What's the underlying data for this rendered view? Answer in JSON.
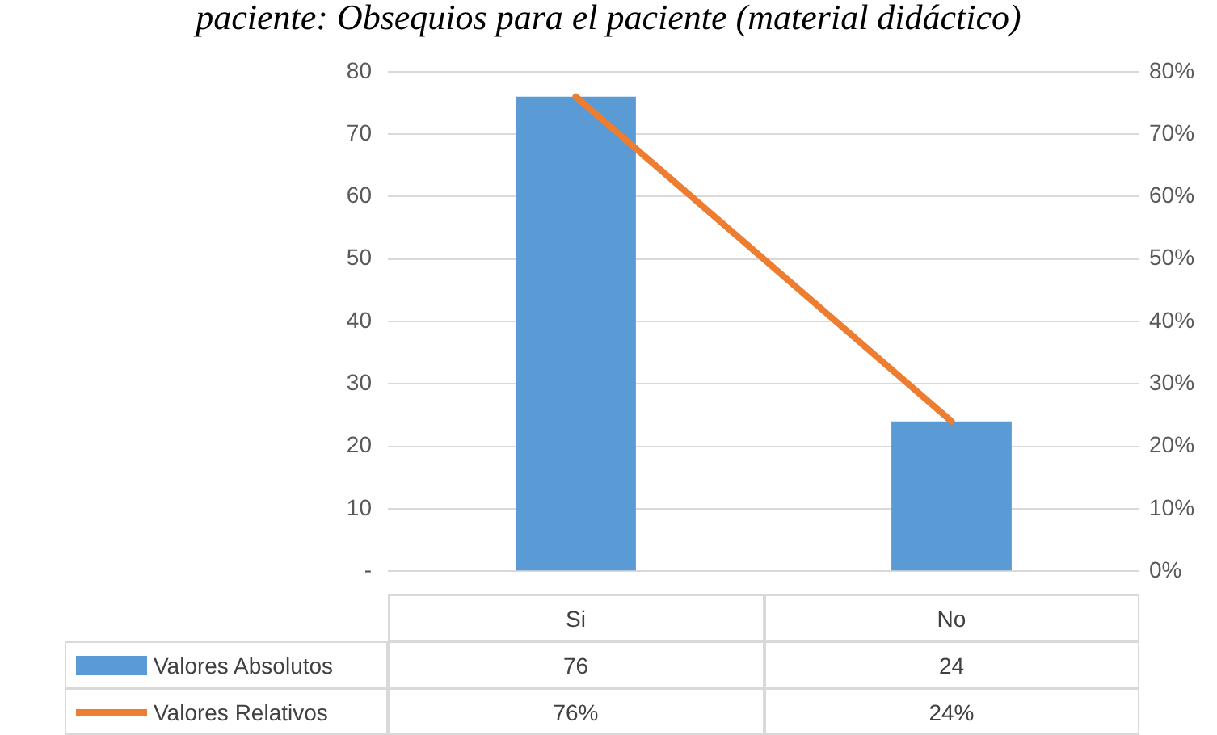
{
  "chart_data": {
    "type": "bar",
    "title": "paciente: Obsequios para el paciente (material didáctico)",
    "categories": [
      "Si",
      "No"
    ],
    "series": [
      {
        "name": "Valores Absolutos",
        "color": "#5b9bd5",
        "values": [
          76,
          24
        ],
        "value_labels": [
          "76",
          "24"
        ]
      },
      {
        "name": "Valores Relativos",
        "type": "line",
        "axis": "y2",
        "color": "#ed7d31",
        "values": [
          76,
          24
        ],
        "value_labels": [
          "76%",
          "24%"
        ],
        "marker": "none"
      }
    ],
    "ylim": [
      0,
      80
    ],
    "yticks": [
      {
        "value": 0,
        "label": "-"
      },
      10,
      20,
      30,
      40,
      50,
      60,
      70,
      80
    ],
    "y2lim": [
      0,
      80
    ],
    "y2ticks": [
      {
        "value": 0,
        "label": "0%"
      },
      {
        "value": 10,
        "label": "10%"
      },
      {
        "value": 20,
        "label": "20%"
      },
      {
        "value": 30,
        "label": "30%"
      },
      {
        "value": 40,
        "label": "40%"
      },
      {
        "value": 50,
        "label": "50%"
      },
      {
        "value": 60,
        "label": "60%"
      },
      {
        "value": 70,
        "label": "70%"
      },
      {
        "value": 80,
        "label": "80%"
      }
    ],
    "grid": "y",
    "legend": "bottom"
  }
}
